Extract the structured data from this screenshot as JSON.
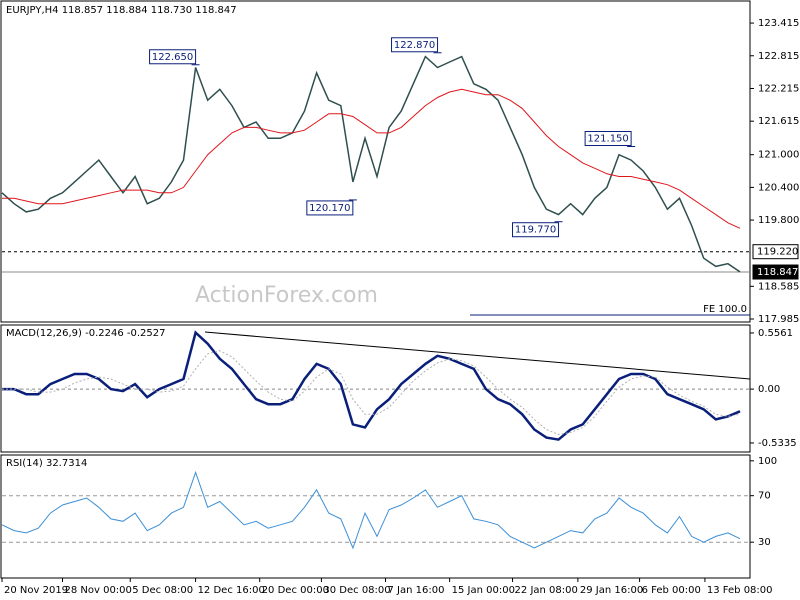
{
  "chart_data": [
    {
      "type": "line",
      "title": "EURJPY,H4  118.857 118.884 118.730 118.847",
      "watermark": "ActionForex.com",
      "xlim": [
        0,
        61
      ],
      "ylim": [
        117.93,
        123.82
      ],
      "yticks": [
        123.415,
        122.815,
        122.215,
        121.615,
        {
          "value": 121,
          "label": "121.000"
        },
        {
          "value": 120.4,
          "label": "120.400"
        },
        {
          "value": 119.8,
          "label": "119.800"
        },
        118.585,
        117.985
      ],
      "series": [
        {
          "name": "EURJPY",
          "color": "#2f4f4f",
          "values": [
            120.3,
            120.1,
            119.95,
            120.0,
            120.2,
            120.3,
            120.5,
            120.7,
            120.9,
            120.6,
            120.3,
            120.6,
            120.1,
            120.2,
            120.5,
            120.9,
            122.6,
            122.0,
            122.2,
            121.9,
            121.5,
            121.6,
            121.3,
            121.3,
            121.4,
            121.8,
            122.5,
            122.0,
            121.9,
            120.5,
            121.3,
            120.6,
            121.5,
            121.8,
            122.3,
            122.8,
            122.6,
            122.7,
            122.8,
            122.3,
            122.2,
            122.0,
            121.5,
            121.0,
            120.4,
            120.0,
            119.9,
            120.1,
            119.9,
            120.2,
            120.4,
            121.0,
            120.9,
            120.7,
            120.4,
            120.0,
            120.2,
            119.7,
            119.1,
            118.95,
            119.0,
            118.85
          ]
        },
        {
          "name": "MA",
          "color": "#e0161c",
          "values": [
            120.2,
            120.2,
            120.15,
            120.1,
            120.1,
            120.1,
            120.15,
            120.2,
            120.25,
            120.3,
            120.35,
            120.35,
            120.35,
            120.3,
            120.3,
            120.4,
            120.7,
            121.0,
            121.2,
            121.4,
            121.5,
            121.5,
            121.45,
            121.4,
            121.4,
            121.45,
            121.6,
            121.75,
            121.75,
            121.7,
            121.55,
            121.4,
            121.4,
            121.5,
            121.7,
            121.9,
            122.05,
            122.15,
            122.2,
            122.15,
            122.1,
            122.1,
            122.0,
            121.85,
            121.6,
            121.35,
            121.15,
            121.0,
            120.85,
            120.75,
            120.65,
            120.6,
            120.6,
            120.55,
            120.5,
            120.45,
            120.35,
            120.2,
            120.05,
            119.9,
            119.75,
            119.65
          ]
        }
      ],
      "annotations": [
        {
          "x": 16,
          "value": 122.65,
          "label": "122.650"
        },
        {
          "x": 29,
          "value": 120.17,
          "label": "120.170"
        },
        {
          "x": 36,
          "value": 122.87,
          "label": "122.870"
        },
        {
          "x": 46,
          "value": 119.77,
          "label": "119.770"
        },
        {
          "x": 52,
          "value": 121.15,
          "label": "121.150"
        }
      ],
      "levels": [
        {
          "value": 119.22,
          "label": "119.220",
          "style": "dashed"
        },
        {
          "value": 118.847,
          "label": "118.847",
          "style": "solid"
        }
      ],
      "fe_label": "FE 100.0"
    },
    {
      "type": "line",
      "title": "MACD(12,26,9) -0.2246 -0.2527",
      "xlim": [
        0,
        61
      ],
      "ylim": [
        -0.623,
        0.635
      ],
      "yticks": [
        0.5561,
        {
          "value": 0,
          "label": "0.00"
        },
        -0.5335
      ],
      "series": [
        {
          "name": "MACD",
          "color": "#0a1f7a",
          "values": [
            0.0,
            0.0,
            -0.05,
            -0.05,
            0.05,
            0.1,
            0.15,
            0.15,
            0.1,
            0.0,
            -0.02,
            0.05,
            -0.08,
            0.0,
            0.05,
            0.1,
            0.56,
            0.45,
            0.3,
            0.2,
            0.05,
            -0.1,
            -0.15,
            -0.15,
            -0.1,
            0.1,
            0.25,
            0.2,
            0.05,
            -0.35,
            -0.38,
            -0.2,
            -0.1,
            0.05,
            0.15,
            0.25,
            0.33,
            0.3,
            0.25,
            0.2,
            0.0,
            -0.1,
            -0.15,
            -0.25,
            -0.4,
            -0.48,
            -0.5,
            -0.4,
            -0.35,
            -0.2,
            -0.05,
            0.1,
            0.15,
            0.15,
            0.1,
            -0.05,
            -0.1,
            -0.15,
            -0.2,
            -0.3,
            -0.27,
            -0.22
          ]
        },
        {
          "name": "Signal",
          "color": "#b0b0b0",
          "values": [
            0.0,
            0.0,
            0.0,
            -0.03,
            -0.03,
            0.0,
            0.06,
            0.1,
            0.12,
            0.1,
            0.05,
            0.0,
            0.0,
            -0.03,
            -0.02,
            0.03,
            0.2,
            0.35,
            0.38,
            0.32,
            0.2,
            0.08,
            -0.03,
            -0.1,
            -0.12,
            -0.02,
            0.12,
            0.2,
            0.15,
            -0.1,
            -0.25,
            -0.25,
            -0.18,
            -0.05,
            0.08,
            0.18,
            0.26,
            0.3,
            0.28,
            0.23,
            0.12,
            0.0,
            -0.1,
            -0.18,
            -0.3,
            -0.4,
            -0.45,
            -0.43,
            -0.38,
            -0.27,
            -0.12,
            0.02,
            0.1,
            0.13,
            0.12,
            0.02,
            -0.06,
            -0.12,
            -0.17,
            -0.25,
            -0.27,
            -0.25
          ]
        }
      ]
    },
    {
      "type": "line",
      "title": "RSI(14) 32.7314",
      "xlim": [
        0,
        61
      ],
      "ylim": [
        -0.8,
        105
      ],
      "yticks": [
        100,
        70,
        30
      ],
      "levels": [
        70,
        30
      ],
      "xticks": [
        {
          "value": 0,
          "label": "20 Nov 2019"
        },
        {
          "value": 5,
          "label": "28 Nov 00:00"
        },
        {
          "value": 10.6,
          "label": "5 Dec 08:00"
        },
        {
          "value": 16,
          "label": "12 Dec 16:00"
        },
        {
          "value": 21.3,
          "label": "20 Dec 00:00"
        },
        {
          "value": 26.4,
          "label": "30 Dec 08:00"
        },
        {
          "value": 31.7,
          "label": "7 Jan 16:00"
        },
        {
          "value": 37,
          "label": "15 Jan 00:00"
        },
        {
          "value": 42.2,
          "label": "22 Jan 08:00"
        },
        {
          "value": 47.6,
          "label": "29 Jan 16:00"
        },
        {
          "value": 52.7,
          "label": "6 Feb 00:00"
        },
        {
          "value": 58.1,
          "label": "13 Feb 08:00"
        }
      ],
      "series": [
        {
          "name": "RSI",
          "color": "#3d8fd6",
          "values": [
            45,
            40,
            38,
            42,
            55,
            62,
            65,
            68,
            60,
            50,
            48,
            55,
            40,
            45,
            55,
            60,
            90,
            60,
            65,
            55,
            45,
            48,
            42,
            45,
            48,
            60,
            75,
            55,
            50,
            25,
            55,
            35,
            58,
            62,
            68,
            75,
            60,
            65,
            70,
            50,
            48,
            45,
            35,
            30,
            25,
            30,
            35,
            40,
            38,
            50,
            55,
            68,
            60,
            55,
            45,
            38,
            52,
            35,
            30,
            35,
            38,
            33
          ]
        }
      ]
    }
  ]
}
